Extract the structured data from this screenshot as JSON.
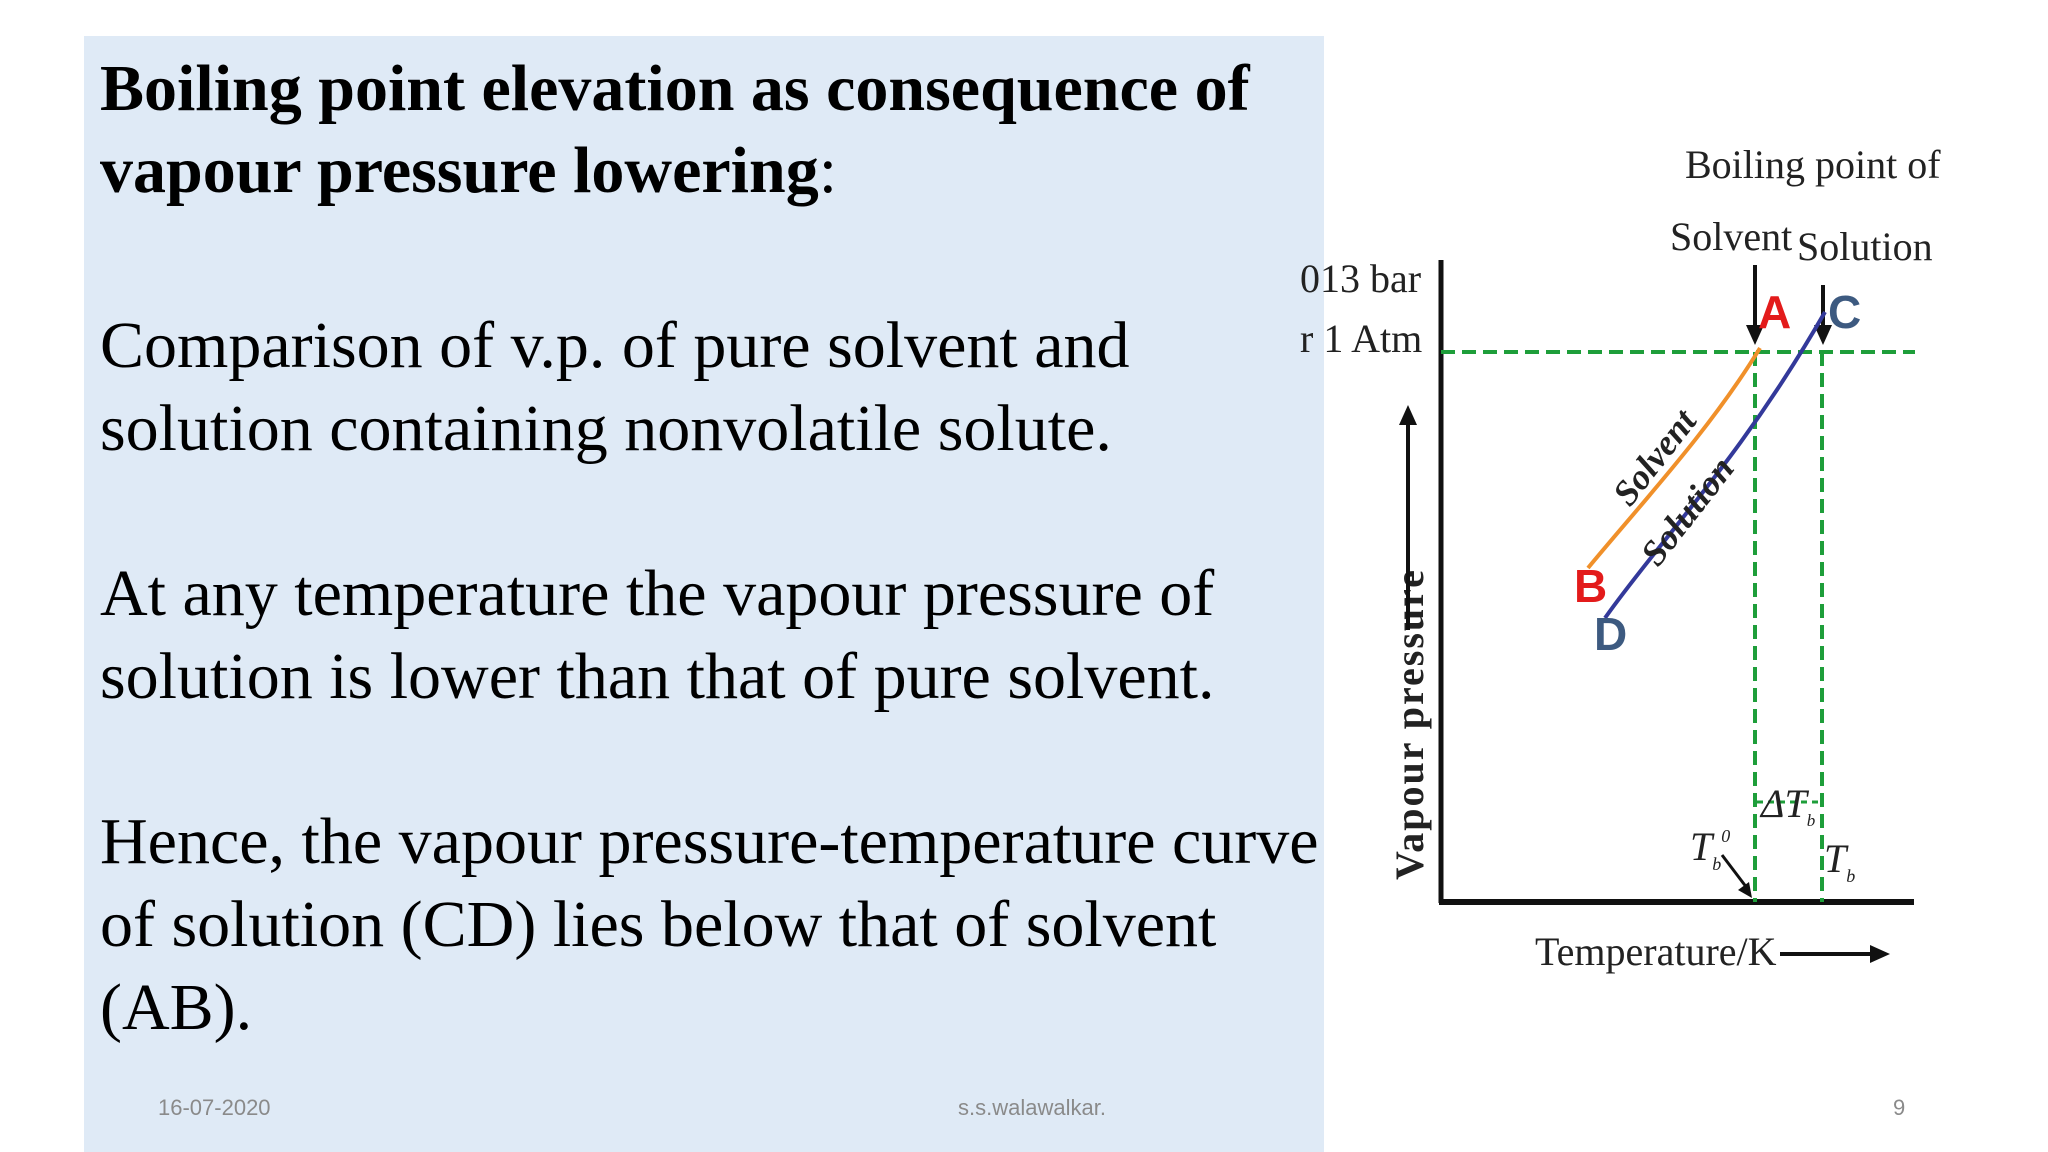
{
  "slide": {
    "title_bold": "Boiling point elevation as consequence of vapour pressure lowering",
    "title_colon": ":",
    "paragraphs": [
      "Comparison of v.p. of pure solvent and solution containing nonvolatile solute.",
      "At any temperature the vapour pressure of solution is lower than that of pure solvent.",
      "Hence, the vapour pressure-temperature curve of solution (CD) lies below that of solvent (AB)."
    ]
  },
  "diagram": {
    "header": "Boiling point of",
    "solvent_label": "Solvent",
    "solution_label": "Solution",
    "pressure_line1": "013 bar",
    "pressure_line2": "r  1 Atm",
    "y_axis_label": "Vapour pressure",
    "x_axis_label": "Temperature/K",
    "points": {
      "a": "A",
      "b": "B",
      "c": "C",
      "d": "D"
    },
    "curve_solvent": "Solvent",
    "curve_solution": "Solution",
    "tb0": "T",
    "tb0_sub": "b",
    "tb0_sup": "0",
    "delta_tb": "ΔT",
    "delta_tb_sub": "b",
    "tb": "T",
    "tb_sub": "b",
    "colors": {
      "solvent_curve": "#f0902a",
      "solution_curve": "#33399a",
      "guides": "#1e9e3a",
      "point_red": "#e31b1b",
      "point_blue": "#3d5a80"
    }
  },
  "footer": {
    "date": "16-07-2020",
    "author": "s.s.walawalkar.",
    "page": "9"
  }
}
